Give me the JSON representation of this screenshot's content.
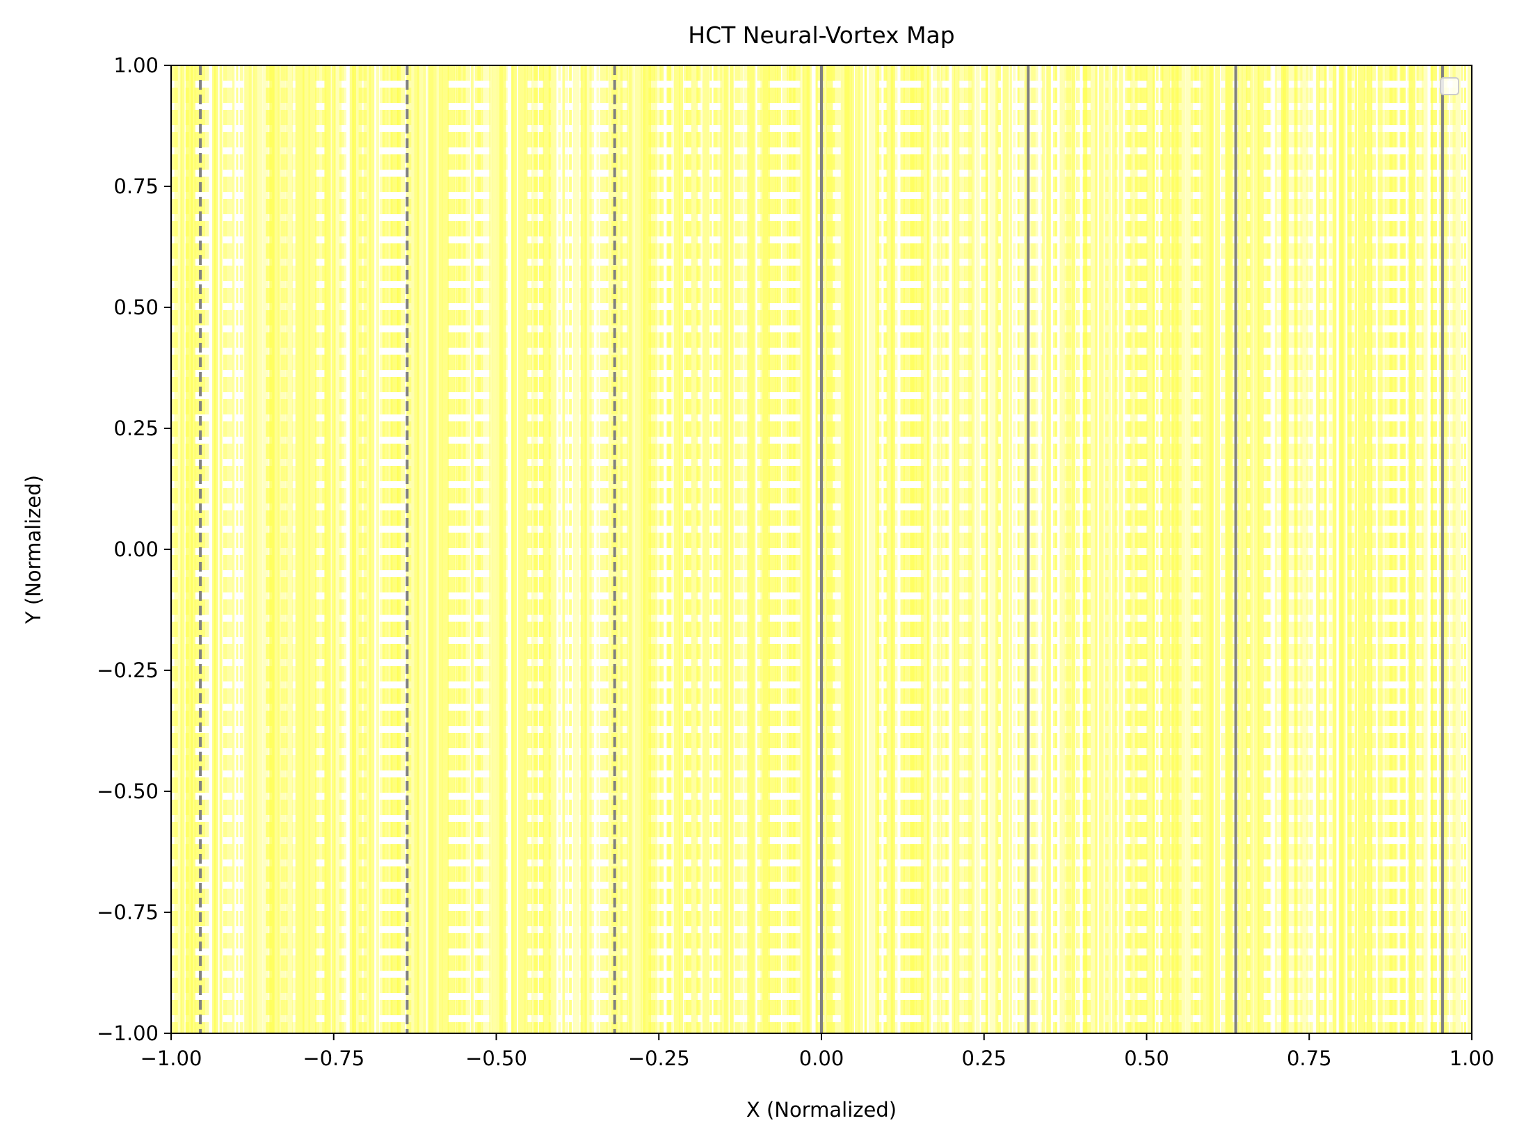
{
  "chart_data": {
    "type": "line",
    "title": "HCT Neural-Vortex Map",
    "xlabel": "X (Normalized)",
    "ylabel": "Y (Normalized)",
    "xlim": [
      -1.0,
      1.0
    ],
    "ylim": [
      -1.0,
      1.0
    ],
    "x_ticks": [
      "−1.00",
      "−0.75",
      "−0.50",
      "−0.25",
      "0.00",
      "0.25",
      "0.50",
      "0.75",
      "1.00"
    ],
    "y_ticks": [
      "1.00",
      "0.75",
      "0.50",
      "0.25",
      "0.00",
      "−0.25",
      "−0.50",
      "−0.75",
      "−1.00"
    ],
    "grid": false,
    "legend": {
      "placement": "upper right",
      "entries": []
    },
    "colors": {
      "fill": "#ffff55",
      "reference_lines": "#808080"
    },
    "reference_lines": [
      {
        "x": -0.955,
        "style": "dashed"
      },
      {
        "x": -0.637,
        "style": "dashed"
      },
      {
        "x": -0.318,
        "style": "dashed"
      },
      {
        "x": 0.0,
        "style": "solid"
      },
      {
        "x": 0.318,
        "style": "solid"
      },
      {
        "x": 0.637,
        "style": "solid"
      },
      {
        "x": 0.955,
        "style": "solid"
      }
    ],
    "vortex_bands": {
      "description_color": "#ffff55",
      "x_start": -1.0,
      "x_end": 1.0,
      "count": 300
    }
  }
}
